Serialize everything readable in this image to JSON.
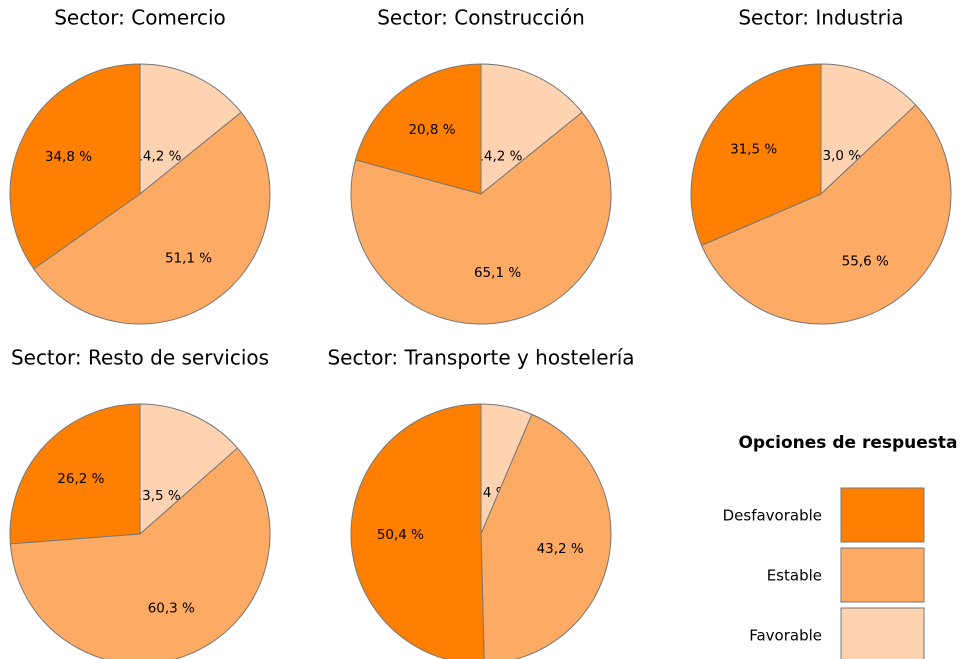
{
  "chart_data": [
    {
      "type": "pie",
      "title": "Sector: Comercio",
      "categories": [
        "Desfavorable",
        "Estable",
        "Favorable"
      ],
      "values": [
        34.8,
        51.1,
        14.2
      ],
      "value_labels": [
        "34,8 %",
        "51,1 %",
        "14,2 %"
      ],
      "colors": [
        "#ff8000",
        "#fdaa64",
        "#fdd3b1"
      ],
      "legend_title": "Opciones de respuesta"
    },
    {
      "type": "pie",
      "title": "Sector: Construcción",
      "categories": [
        "Desfavorable",
        "Estable",
        "Favorable"
      ],
      "values": [
        20.8,
        65.1,
        14.2
      ],
      "value_labels": [
        "20,8 %",
        "65,1 %",
        "14,2 %"
      ],
      "colors": [
        "#ff8000",
        "#fdaa64",
        "#fdd3b1"
      ]
    },
    {
      "type": "pie",
      "title": "Sector: Industria",
      "categories": [
        "Desfavorable",
        "Estable",
        "Favorable"
      ],
      "values": [
        31.5,
        55.6,
        13.0
      ],
      "value_labels": [
        "31,5 %",
        "55,6 %",
        "13,0 %"
      ],
      "colors": [
        "#ff8000",
        "#fdaa64",
        "#fdd3b1"
      ]
    },
    {
      "type": "pie",
      "title": "Sector: Resto de servicios",
      "categories": [
        "Desfavorable",
        "Estable",
        "Favorable"
      ],
      "values": [
        26.2,
        60.3,
        13.5
      ],
      "value_labels": [
        "26,2 %",
        "60,3 %",
        "13,5 %"
      ],
      "colors": [
        "#ff8000",
        "#fdaa64",
        "#fdd3b1"
      ]
    },
    {
      "type": "pie",
      "title": "Sector: Transporte y hostelería",
      "categories": [
        "Desfavorable",
        "Estable",
        "Favorable"
      ],
      "values": [
        50.4,
        43.2,
        6.4
      ],
      "value_labels": [
        "50,4 %",
        "43,2 %",
        "6,4 %"
      ],
      "colors": [
        "#ff8000",
        "#fdaa64",
        "#fdd3b1"
      ]
    }
  ]
}
